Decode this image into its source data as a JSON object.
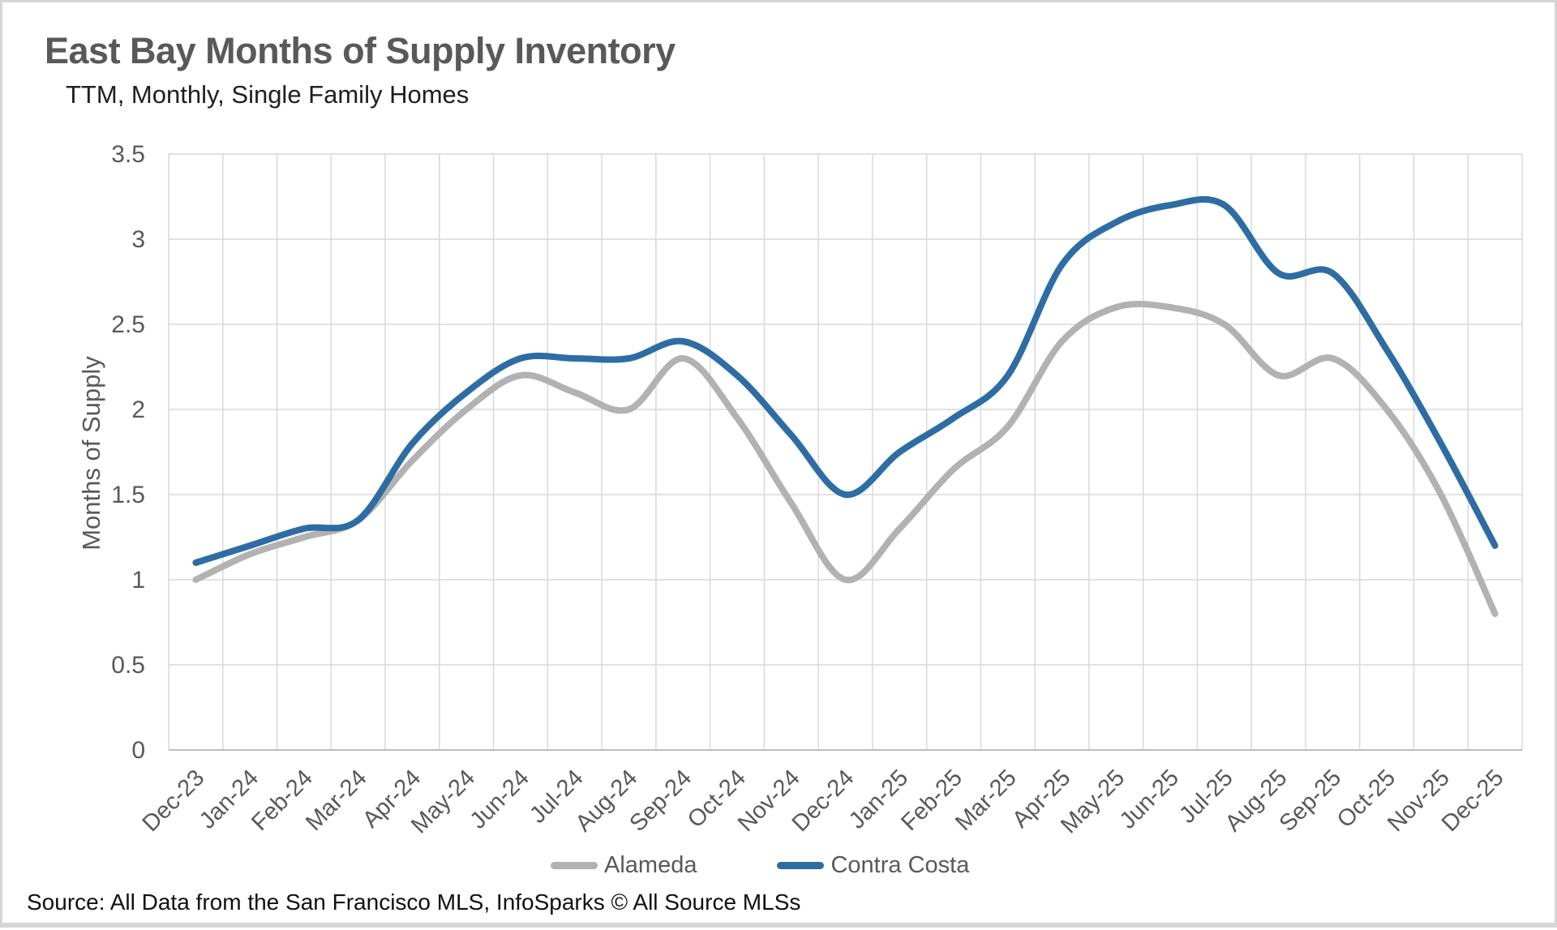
{
  "header": {
    "title": "East Bay Months of Supply Inventory",
    "subtitle": "TTM, Monthly, Single Family Homes"
  },
  "chart_data": {
    "type": "line",
    "title": "East Bay Months of Supply Inventory",
    "subtitle": "TTM, Monthly, Single Family Homes",
    "xlabel": "",
    "ylabel": "Months of Supply",
    "ylim": [
      0,
      3.5
    ],
    "y_ticks": [
      0,
      0.5,
      1,
      1.5,
      2,
      2.5,
      3,
      3.5
    ],
    "y_tick_labels": [
      "0",
      "0.5",
      "1",
      "1.5",
      "2",
      "2.5",
      "3",
      "3.5"
    ],
    "grid": true,
    "smooth": true,
    "legend_position": "bottom",
    "categories": [
      "Dec-23",
      "Jan-24",
      "Feb-24",
      "Mar-24",
      "Apr-24",
      "May-24",
      "Jun-24",
      "Jul-24",
      "Aug-24",
      "Sep-24",
      "Oct-24",
      "Nov-24",
      "Dec-24",
      "Jan-25",
      "Feb-25",
      "Mar-25",
      "Apr-25",
      "May-25",
      "Jun-25",
      "Jul-25",
      "Aug-25",
      "Sep-25",
      "Oct-25",
      "Nov-25",
      "Dec-25"
    ],
    "series": [
      {
        "name": "Alameda",
        "color": "#b2b2b2",
        "values": [
          1.0,
          1.15,
          1.25,
          1.35,
          1.7,
          2.0,
          2.2,
          2.1,
          2.0,
          2.3,
          1.95,
          1.45,
          1.0,
          1.3,
          1.65,
          1.9,
          2.4,
          2.6,
          2.6,
          2.5,
          2.2,
          2.3,
          2.0,
          1.5,
          0.8
        ]
      },
      {
        "name": "Contra Costa",
        "color": "#2e6da4",
        "values": [
          1.1,
          1.2,
          1.3,
          1.35,
          1.8,
          2.1,
          2.3,
          2.3,
          2.3,
          2.4,
          2.2,
          1.85,
          1.5,
          1.75,
          1.95,
          2.2,
          2.85,
          3.1,
          3.2,
          3.2,
          2.8,
          2.8,
          2.35,
          1.8,
          1.2
        ]
      }
    ]
  },
  "source": {
    "text": "Source: All Data from the San Francisco MLS, InfoSparks © All Source MLSs"
  },
  "colors": {
    "grid_line": "#d9d9d9",
    "axis_line": "#bfbfbf",
    "tick_label": "#595959",
    "title_text": "#595959",
    "subtitle_text": "#1f1f1f",
    "alameda_line": "#b2b2b2",
    "contra_costa_line": "#2e6da4"
  }
}
